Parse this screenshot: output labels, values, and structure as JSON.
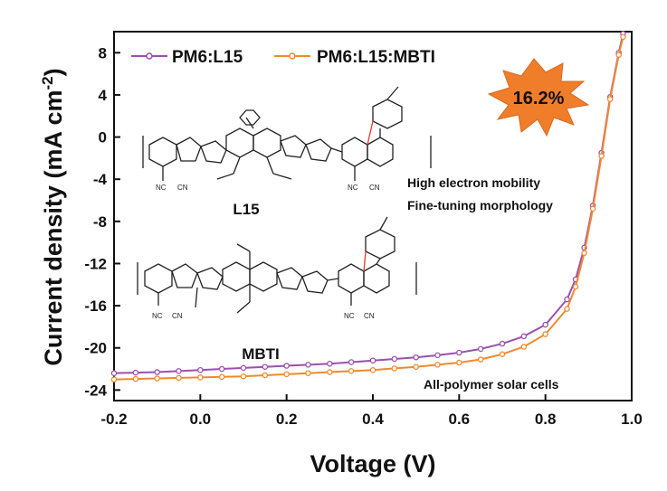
{
  "chart_data": {
    "type": "line",
    "xlabel": "Voltage (V)",
    "ylabel_main": "Current density (mA cm",
    "ylabel_sup": "-2",
    "ylabel_close": ")",
    "xlim": [
      -0.2,
      1.0
    ],
    "ylim": [
      -25,
      10
    ],
    "xticks": [
      "-0.2",
      "0.0",
      "0.2",
      "0.4",
      "0.6",
      "0.8",
      "1.0"
    ],
    "yticks": [
      "8",
      "4",
      "0",
      "-4",
      "-8",
      "-12",
      "-16",
      "-20",
      "-24"
    ],
    "grid": false,
    "legend_position": "top-left",
    "series": [
      {
        "name": "PM6:L15",
        "color": "#9b4fb0",
        "x": [
          -0.2,
          -0.15,
          -0.1,
          -0.05,
          0.0,
          0.05,
          0.1,
          0.15,
          0.2,
          0.25,
          0.3,
          0.35,
          0.4,
          0.45,
          0.5,
          0.55,
          0.6,
          0.65,
          0.7,
          0.75,
          0.8,
          0.85,
          0.87,
          0.89,
          0.91,
          0.93,
          0.95,
          0.97,
          0.98
        ],
        "y": [
          -22.4,
          -22.35,
          -22.3,
          -22.2,
          -22.1,
          -22.0,
          -21.9,
          -21.8,
          -21.7,
          -21.6,
          -21.5,
          -21.35,
          -21.2,
          -21.05,
          -20.9,
          -20.7,
          -20.45,
          -20.1,
          -19.6,
          -18.9,
          -17.8,
          -15.4,
          -13.5,
          -10.5,
          -6.5,
          -1.5,
          3.8,
          8.0,
          9.8
        ]
      },
      {
        "name": "PM6:L15:MBTI",
        "color": "#f08a2c",
        "x": [
          -0.2,
          -0.15,
          -0.1,
          -0.05,
          0.0,
          0.05,
          0.1,
          0.15,
          0.2,
          0.25,
          0.3,
          0.35,
          0.4,
          0.45,
          0.5,
          0.55,
          0.6,
          0.65,
          0.7,
          0.75,
          0.8,
          0.85,
          0.87,
          0.89,
          0.91,
          0.93,
          0.95,
          0.97,
          0.98
        ],
        "y": [
          -23.0,
          -22.95,
          -22.9,
          -22.85,
          -22.8,
          -22.75,
          -22.7,
          -22.6,
          -22.5,
          -22.4,
          -22.3,
          -22.2,
          -22.1,
          -21.95,
          -21.8,
          -21.6,
          -21.4,
          -21.1,
          -20.6,
          -19.9,
          -18.7,
          -16.3,
          -14.2,
          -11.0,
          -6.8,
          -1.8,
          3.6,
          7.8,
          9.5
        ]
      }
    ],
    "badge_text": "16.2%",
    "badge_color": "#f07d2a",
    "annotations": [
      "High electron mobility",
      "Fine-tuning morphology",
      "All-polymer solar cells"
    ],
    "molecule_labels": [
      "L15",
      "MBTI"
    ]
  }
}
